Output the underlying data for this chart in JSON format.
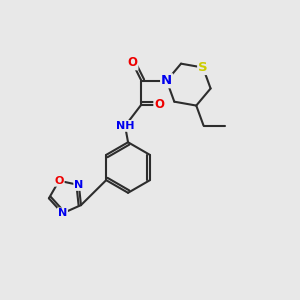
{
  "background_color": "#e8e8e8",
  "bond_color": "#2d2d2d",
  "bond_width": 1.5,
  "atom_colors": {
    "N": "#0000ee",
    "O": "#ee0000",
    "S": "#cccc00",
    "H": "#7ab0b0",
    "C": "#2d2d2d"
  },
  "font_size": 8.5
}
